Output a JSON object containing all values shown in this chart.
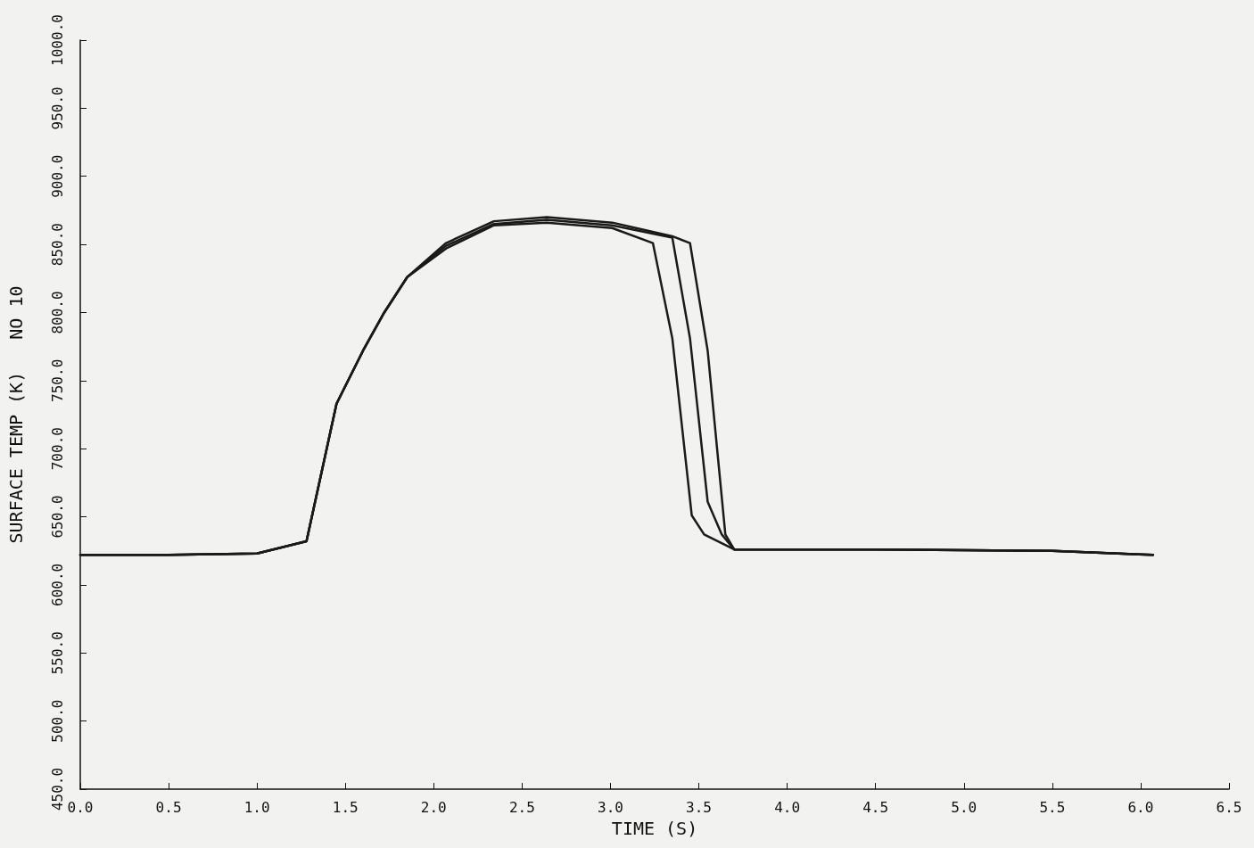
{
  "chart_data": {
    "type": "line",
    "xlabel": "TIME (S)",
    "ylabel": "SURFACE TEMP (K)   NO 10",
    "xlim": [
      0,
      6.5
    ],
    "xticks": [
      {
        "value": 0,
        "label": "0.0"
      },
      {
        "value": 0.5,
        "label": "0.5"
      },
      {
        "value": 1,
        "label": "1.0"
      },
      {
        "value": 1.5,
        "label": "1.5"
      },
      {
        "value": 2,
        "label": "2.0"
      },
      {
        "value": 2.5,
        "label": "2.5"
      },
      {
        "value": 3,
        "label": "3.0"
      },
      {
        "value": 3.5,
        "label": "3.5"
      },
      {
        "value": 4,
        "label": "4.0"
      },
      {
        "value": 4.5,
        "label": "4.5"
      },
      {
        "value": 5,
        "label": "5.0"
      },
      {
        "value": 5.5,
        "label": "5.5"
      },
      {
        "value": 6,
        "label": "6.0"
      },
      {
        "value": 6.5,
        "label": "6.5"
      }
    ],
    "ylim": [
      450,
      1000
    ],
    "yticks": [
      {
        "value": 450,
        "label": "450.0"
      },
      {
        "value": 500,
        "label": "500.0"
      },
      {
        "value": 550,
        "label": "550.0"
      },
      {
        "value": 600,
        "label": "600.0"
      },
      {
        "value": 650,
        "label": "650.0"
      },
      {
        "value": 700,
        "label": "700.0"
      },
      {
        "value": 750,
        "label": "750.0"
      },
      {
        "value": 800,
        "label": "800.0"
      },
      {
        "value": 850,
        "label": "850.0"
      },
      {
        "value": 900,
        "label": "900.0"
      },
      {
        "value": 950,
        "label": "950.0"
      },
      {
        "value": 1000,
        "label": "1000.0"
      }
    ],
    "grid": false,
    "marker": "none",
    "line_style": "solid",
    "series": [
      {
        "color": "#1a1a1a",
        "x": [
          0,
          0.5,
          1.0,
          1.28,
          1.45,
          1.6,
          1.72,
          1.85,
          2.07,
          2.34,
          2.64,
          3.01,
          3.35,
          3.45,
          3.55,
          3.65,
          3.7,
          4.5,
          5.5,
          6.07
        ],
        "values": [
          622,
          622,
          623,
          632,
          733,
          772,
          800,
          826,
          851,
          867,
          870,
          866,
          856,
          851,
          772,
          637,
          626,
          626,
          625,
          622
        ]
      },
      {
        "color": "#1a1a1a",
        "x": [
          0,
          0.5,
          1.0,
          1.28,
          1.45,
          1.6,
          1.72,
          1.85,
          2.07,
          2.34,
          2.64,
          3.01,
          3.35,
          3.45,
          3.55,
          3.63,
          3.7,
          4.5,
          5.5,
          6.07
        ],
        "values": [
          622,
          622,
          623,
          632,
          733,
          772,
          800,
          826,
          849,
          865,
          868,
          864,
          855,
          781,
          661,
          637,
          626,
          626,
          625,
          622
        ]
      },
      {
        "color": "#1a1a1a",
        "x": [
          0,
          0.5,
          1.0,
          1.28,
          1.45,
          1.6,
          1.72,
          1.85,
          2.07,
          2.34,
          2.64,
          3.01,
          3.24,
          3.35,
          3.46,
          3.53,
          3.7,
          4.5,
          5.5,
          6.07
        ],
        "values": [
          622,
          622,
          623,
          632,
          733,
          772,
          800,
          826,
          847,
          864,
          866,
          862,
          851,
          781,
          651,
          637,
          626,
          626,
          625,
          622
        ]
      }
    ]
  }
}
